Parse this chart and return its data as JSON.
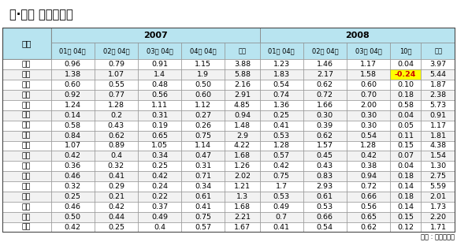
{
  "title": "시·도별 지가변동률",
  "source": "자료 : 국토해양부",
  "col_headers": [
    "구분",
    "01월 04일",
    "02월 04일",
    "03월 04일",
    "04월 04일",
    "누계",
    "01월 04일",
    "02월 04일",
    "03월 04일",
    "10월",
    "누계"
  ],
  "rows": [
    [
      "전국",
      "0.96",
      "0.79",
      "0.91",
      "1.15",
      "3.88",
      "1.23",
      "1.46",
      "1.17",
      "0.04",
      "3.97"
    ],
    [
      "서울",
      "1.38",
      "1.07",
      "1.4",
      "1.9",
      "5.88",
      "1.83",
      "2.17",
      "1.58",
      "-0.24",
      "5.44"
    ],
    [
      "부산",
      "0.60",
      "0.55",
      "0.48",
      "0.50",
      "2.16",
      "0.54",
      "0.62",
      "0.60",
      "0.10",
      "1.87"
    ],
    [
      "대구",
      "0.92",
      "0.77",
      "0.56",
      "0.60",
      "2.91",
      "0.74",
      "0.72",
      "0.70",
      "0.18",
      "2.38"
    ],
    [
      "인천",
      "1.24",
      "1.28",
      "1.11",
      "1.12",
      "4.85",
      "1.36",
      "1.66",
      "2.00",
      "0.58",
      "5.73"
    ],
    [
      "광주",
      "0.14",
      "0.2",
      "0.31",
      "0.27",
      "0.94",
      "0.25",
      "0.30",
      "0.30",
      "0.04",
      "0.91"
    ],
    [
      "대전",
      "0.58",
      "0.43",
      "0.19",
      "0.26",
      "1.48",
      "0.41",
      "0.39",
      "0.30",
      "0.05",
      "1.17"
    ],
    [
      "울산",
      "0.84",
      "0.62",
      "0.65",
      "0.75",
      "2.9",
      "0.53",
      "0.62",
      "0.54",
      "0.11",
      "1.81"
    ],
    [
      "경기",
      "1.07",
      "0.89",
      "1.05",
      "1.14",
      "4.22",
      "1.28",
      "1.57",
      "1.28",
      "0.15",
      "4.38"
    ],
    [
      "강원",
      "0.42",
      "0.4",
      "0.34",
      "0.47",
      "1.68",
      "0.57",
      "0.45",
      "0.42",
      "0.07",
      "1.54"
    ],
    [
      "충북",
      "0.36",
      "0.32",
      "0.25",
      "0.31",
      "1.26",
      "0.42",
      "0.43",
      "0.38",
      "0.04",
      "1.30"
    ],
    [
      "충남",
      "0.46",
      "0.41",
      "0.42",
      "0.71",
      "2.02",
      "0.75",
      "0.83",
      "0.94",
      "0.18",
      "2.75"
    ],
    [
      "전북",
      "0.32",
      "0.29",
      "0.24",
      "0.34",
      "1.21",
      "1.7",
      "2.93",
      "0.72",
      "0.14",
      "5.59"
    ],
    [
      "전남",
      "0.25",
      "0.21",
      "0.22",
      "0.61",
      "1.3",
      "0.53",
      "0.61",
      "0.66",
      "0.18",
      "2.01"
    ],
    [
      "경북",
      "0.46",
      "0.42",
      "0.37",
      "0.41",
      "1.68",
      "0.49",
      "0.53",
      "0.56",
      "0.14",
      "1.73"
    ],
    [
      "경남",
      "0.50",
      "0.44",
      "0.49",
      "0.75",
      "2.21",
      "0.7",
      "0.66",
      "0.65",
      "0.15",
      "2.20"
    ],
    [
      "제주",
      "0.42",
      "0.25",
      "0.4",
      "0.57",
      "1.67",
      "0.41",
      "0.54",
      "0.62",
      "0.12",
      "1.71"
    ]
  ],
  "highlight_cell": [
    1,
    9
  ],
  "highlight_color": "#FFFF00",
  "header_bg": "#B8E4F0",
  "white": "#FFFFFF",
  "light_gray": "#F2F2F2",
  "border_color": "#888888",
  "border_outer": "#444444"
}
